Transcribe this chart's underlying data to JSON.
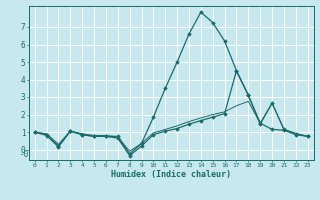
{
  "xlabel": "Humidex (Indice chaleur)",
  "bg_color": "#c8e8f0",
  "grid_color": "#ffffff",
  "line_color": "#1a6b6b",
  "xticks": [
    0,
    1,
    2,
    3,
    4,
    5,
    6,
    7,
    8,
    9,
    10,
    11,
    12,
    13,
    14,
    15,
    16,
    17,
    18,
    19,
    20,
    21,
    22,
    23
  ],
  "yticks": [
    0,
    1,
    2,
    3,
    4,
    5,
    6,
    7
  ],
  "xlim": [
    -0.5,
    23.5
  ],
  "ylim": [
    -0.6,
    8.2
  ],
  "curve1_x": [
    0,
    1,
    2,
    3,
    4,
    5,
    6,
    7,
    8,
    9,
    10,
    11,
    12,
    13,
    14,
    15,
    16,
    17,
    18,
    19,
    20,
    21,
    22,
    23
  ],
  "curve1_y": [
    1.0,
    0.8,
    0.15,
    1.05,
    0.85,
    0.75,
    0.75,
    0.75,
    -0.25,
    0.35,
    1.85,
    3.5,
    5.0,
    6.6,
    7.85,
    7.25,
    6.2,
    4.5,
    3.1,
    1.5,
    1.15,
    1.1,
    0.85,
    0.75
  ],
  "curve2_x": [
    0,
    1,
    2,
    3,
    4,
    5,
    6,
    7,
    8,
    9,
    10,
    11,
    12,
    13,
    14,
    15,
    16,
    17,
    18,
    19,
    20,
    21,
    22,
    23
  ],
  "curve2_y": [
    1.0,
    0.85,
    0.2,
    1.05,
    0.85,
    0.75,
    0.75,
    0.65,
    -0.35,
    0.2,
    0.85,
    1.05,
    1.2,
    1.45,
    1.65,
    1.85,
    2.05,
    4.5,
    3.1,
    1.45,
    2.65,
    1.15,
    0.9,
    0.75
  ],
  "curve3_x": [
    0,
    1,
    2,
    3,
    4,
    5,
    6,
    7,
    8,
    9,
    10,
    11,
    12,
    13,
    14,
    15,
    16,
    17,
    18,
    19,
    20,
    21,
    22,
    23
  ],
  "curve3_y": [
    1.0,
    0.9,
    0.3,
    1.05,
    0.9,
    0.8,
    0.8,
    0.72,
    -0.1,
    0.35,
    0.95,
    1.15,
    1.35,
    1.6,
    1.8,
    2.0,
    2.15,
    2.5,
    2.75,
    1.5,
    2.65,
    1.15,
    0.92,
    0.75
  ]
}
